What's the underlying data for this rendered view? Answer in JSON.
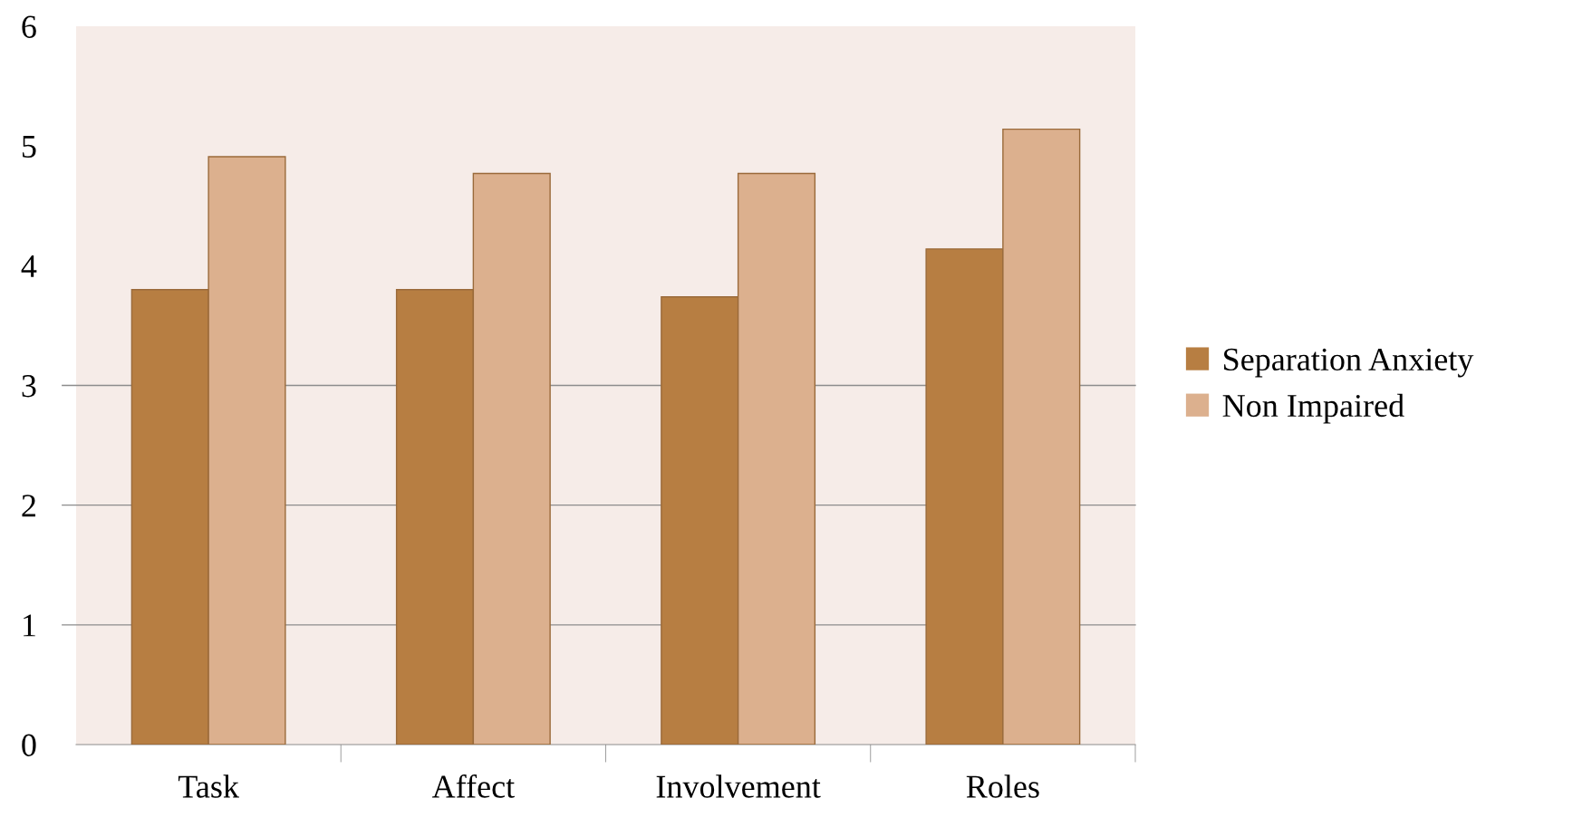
{
  "chart_data": {
    "type": "bar",
    "categories": [
      "Task",
      "Affect",
      "Involvement",
      "Roles"
    ],
    "series": [
      {
        "name": "Separation Anxiety",
        "color": "#b77e42",
        "values": [
          3.8,
          3.8,
          3.74,
          4.14
        ]
      },
      {
        "name": "Non Impaired",
        "color": "#dcb08e",
        "values": [
          4.91,
          4.77,
          4.77,
          5.14
        ]
      }
    ],
    "ylim": [
      0,
      6
    ],
    "yticks": [
      0,
      1,
      2,
      3,
      4,
      5,
      6
    ],
    "ref_lines": [
      {
        "axis": "y",
        "value": 1,
        "color": "#8c8c8c"
      },
      {
        "axis": "y",
        "value": 2,
        "color": "#8c8c8c"
      },
      {
        "axis": "y",
        "value": 3,
        "color": "#8c8c8c"
      }
    ],
    "legend": "right"
  }
}
